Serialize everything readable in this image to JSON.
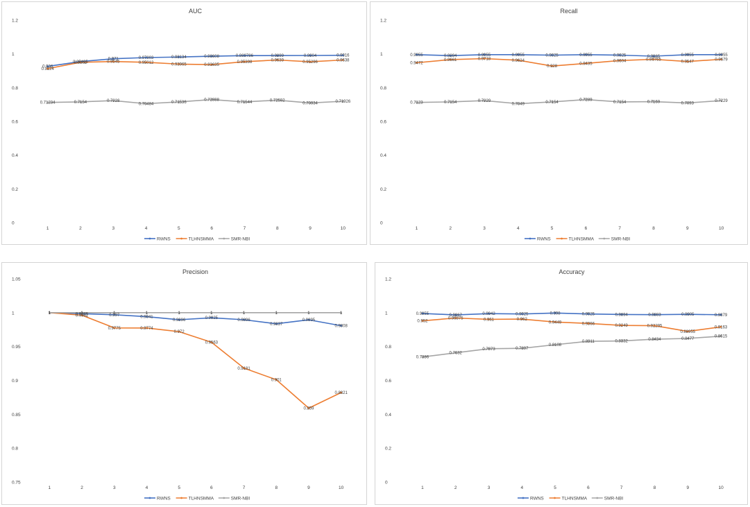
{
  "colors": {
    "RWNS": "#4472C4",
    "TLHNSMMA": "#ED7D31",
    "SMR-NBI": "#A5A5A5"
  },
  "chart_data": [
    {
      "type": "line",
      "title": "AUC",
      "categories": [
        "1",
        "2",
        "3",
        "4",
        "5",
        "6",
        "7",
        "8",
        "9",
        "10"
      ],
      "ylim": [
        0,
        1.2
      ],
      "yticks": [
        "0",
        "0.2",
        "0.4",
        "0.6",
        "0.8",
        "1",
        "1.2"
      ],
      "ytick_values": [
        0,
        0.2,
        0.4,
        0.6,
        0.8,
        1,
        1.2
      ],
      "legend_position": "bottom",
      "series": [
        {
          "name": "RWNS",
          "values": [
            0.926,
            0.95405,
            0.971,
            0.97803,
            0.98134,
            0.98608,
            0.989786,
            0.9899,
            0.9904,
            0.9916
          ],
          "labels": [
            "0.926",
            "0.95405",
            "0.971",
            "0.97803",
            "0.98134",
            "0.98608",
            "0.989786",
            "0.9899",
            "0.9904",
            "0.9916"
          ]
        },
        {
          "name": "TLHNSMMA",
          "values": [
            0.9124,
            0.9502,
            0.9545,
            0.95012,
            0.93965,
            0.93635,
            0.95398,
            0.9639,
            0.95296,
            0.9638
          ],
          "labels": [
            "0.9124",
            "0.9502",
            "0.9545",
            "0.95012",
            "0.93965",
            "0.93635",
            "0.95398",
            "0.9639",
            "0.95296",
            "0.9638"
          ]
        },
        {
          "name": "SMR-NBI",
          "values": [
            0.71234,
            0.7154,
            0.7228,
            0.70484,
            0.71536,
            0.72888,
            0.71544,
            0.72592,
            0.70934,
            0.71926
          ],
          "labels": [
            "0.71234",
            "0.7154",
            "0.7228",
            "0.70484",
            "0.71536",
            "0.72888",
            "0.71544",
            "0.72592",
            "0.70934",
            "0.71926"
          ]
        }
      ]
    },
    {
      "type": "line",
      "title": "Recall",
      "categories": [
        "1",
        "2",
        "3",
        "4",
        "5",
        "6",
        "7",
        "8",
        "9",
        "10"
      ],
      "ylim": [
        0,
        1.2
      ],
      "yticks": [
        "0",
        "0.2",
        "0.4",
        "0.6",
        "0.8",
        "1",
        "1.2"
      ],
      "ytick_values": [
        0,
        0.2,
        0.4,
        0.6,
        0.8,
        1,
        1.2
      ],
      "legend_position": "bottom",
      "series": [
        {
          "name": "RWNS",
          "values": [
            0.9955,
            0.9894,
            0.9955,
            0.9955,
            0.9925,
            0.9955,
            0.9925,
            0.9865,
            0.9955,
            0.9955
          ],
          "labels": [
            "0.9955",
            "0.9894",
            "0.9955",
            "0.9955",
            "0.9925",
            "0.9955",
            "0.9925",
            "0.9865",
            "0.9955",
            "0.9955"
          ]
        },
        {
          "name": "TLHNSMMA",
          "values": [
            0.9472,
            0.9661,
            0.9718,
            0.9624,
            0.928,
            0.9435,
            0.9604,
            0.96765,
            0.9547,
            0.9679
          ],
          "labels": [
            "0.9472",
            "0.9661",
            "0.9718",
            "0.9624",
            "0.928",
            "0.9435",
            "0.9604",
            "0.96765",
            "0.9547",
            "0.9679"
          ]
        },
        {
          "name": "SMR-NBI",
          "values": [
            0.7123,
            0.7154,
            0.7229,
            0.7049,
            0.7154,
            0.7289,
            0.7154,
            0.7169,
            0.7093,
            0.7229
          ],
          "labels": [
            "0.7123",
            "0.7154",
            "0.7229",
            "0.7049",
            "0.7154",
            "0.7289",
            "0.7154",
            "0.7169",
            "0.7093",
            "0.7229"
          ]
        }
      ]
    },
    {
      "type": "line",
      "title": "Precision",
      "categories": [
        "1",
        "2",
        "3",
        "4",
        "5",
        "6",
        "7",
        "8",
        "9",
        "10"
      ],
      "ylim": [
        0.75,
        1.05
      ],
      "yticks": [
        "0.75",
        "0.8",
        "0.85",
        "0.9",
        "0.95",
        "1",
        "1.05"
      ],
      "ytick_values": [
        0.75,
        0.8,
        0.85,
        0.9,
        0.95,
        1,
        1.05
      ],
      "legend_position": "bottom",
      "series": [
        {
          "name": "RWNS",
          "values": [
            1,
            0.9985,
            0.997,
            0.9941,
            0.9896,
            0.9925,
            0.9896,
            0.9837,
            0.9895,
            0.9808
          ],
          "labels": [
            "1",
            "0.9985",
            "0.997",
            "0.9941",
            "0.9896",
            "0.9925",
            "0.9896",
            "0.9837",
            "0.9895",
            "0.9808"
          ]
        },
        {
          "name": "TLHNSMMA",
          "values": [
            1,
            0.9962,
            0.9775,
            0.9774,
            0.972,
            0.9563,
            0.9181,
            0.901,
            0.859,
            0.8821
          ],
          "labels": [
            "1",
            "0.9962",
            "0.9775",
            "0.9774",
            "0.972",
            "0.9563",
            "0.9181",
            "0.901",
            "0.859",
            "0.8821"
          ]
        },
        {
          "name": "SMR-NBI",
          "values": [
            1,
            1,
            1,
            1,
            1,
            1,
            1,
            1,
            1,
            1
          ],
          "labels": [
            "1",
            "1",
            "1",
            "1",
            "1",
            "1",
            "1",
            "1",
            "1",
            "1"
          ]
        }
      ]
    },
    {
      "type": "line",
      "title": "Accuracy",
      "categories": [
        "1",
        "2",
        "3",
        "4",
        "5",
        "6",
        "7",
        "8",
        "9",
        "10"
      ],
      "ylim": [
        0,
        1.2
      ],
      "yticks": [
        "0",
        "0.2",
        "0.4",
        "0.6",
        "0.8",
        "1",
        "1.2"
      ],
      "ytick_values": [
        0,
        0.2,
        0.4,
        0.6,
        0.8,
        1,
        1.2
      ],
      "legend_position": "bottom",
      "series": [
        {
          "name": "RWNS",
          "values": [
            0.9955,
            0.9867,
            0.9942,
            0.9925,
            0.998,
            0.9925,
            0.9894,
            0.9883,
            0.9905,
            0.9879
          ],
          "labels": [
            "0.9955",
            "0.9867",
            "0.9942",
            "0.9925",
            "0.998",
            "0.9925",
            "0.9894",
            "0.9883",
            "0.9905",
            "0.9879"
          ]
        },
        {
          "name": "TLHNSMMA",
          "values": [
            0.952,
            0.96875,
            0.961,
            0.962,
            0.9449,
            0.9366,
            0.9249,
            0.92295,
            0.88955,
            0.9163
          ],
          "labels": [
            "0.952",
            "0.96875",
            "0.961",
            "0.962",
            "0.9449",
            "0.9366",
            "0.9249",
            "0.92295",
            "0.88955",
            "0.9163"
          ]
        },
        {
          "name": "SMR-NBI",
          "values": [
            0.7386,
            0.7632,
            0.7873,
            0.7897,
            0.8108,
            0.8311,
            0.8332,
            0.8434,
            0.8477,
            0.8615
          ],
          "labels": [
            "0.7386",
            "0.7632",
            "0.7873",
            "0.7897",
            "0.8108",
            "0.8311",
            "0.8332",
            "0.8434",
            "0.8477",
            "0.8615"
          ]
        }
      ]
    }
  ]
}
